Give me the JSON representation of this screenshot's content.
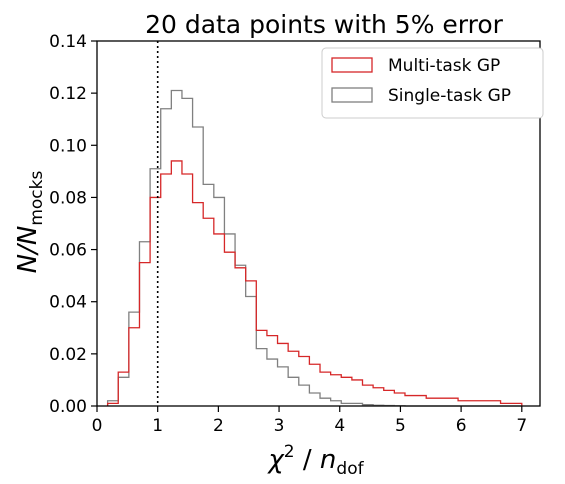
{
  "chart_data": {
    "type": "histogram",
    "title": "20 data points with 5% error",
    "xlabel": {
      "base": "χ",
      "sup": "2",
      "sep": " / ",
      "main": "n",
      "sub": "dof"
    },
    "ylabel": {
      "main": "N/N",
      "sub": "mocks"
    },
    "xlim": [
      0,
      7.3
    ],
    "ylim": [
      0,
      0.14
    ],
    "xticks": [
      0,
      1,
      2,
      3,
      4,
      5,
      6,
      7
    ],
    "xtick_labels": [
      "0",
      "1",
      "2",
      "3",
      "4",
      "5",
      "6",
      "7"
    ],
    "yticks": [
      0,
      0.02,
      0.04,
      0.06,
      0.08,
      0.1,
      0.12,
      0.14
    ],
    "ytick_labels": [
      "0.00",
      "0.02",
      "0.04",
      "0.06",
      "0.08",
      "0.10",
      "0.12",
      "0.14"
    ],
    "vline_x": 1.0,
    "legend_position": "top-right",
    "bin_edges": [
      0.175,
      0.35,
      0.525,
      0.7,
      0.875,
      1.05,
      1.225,
      1.4,
      1.575,
      1.75,
      1.925,
      2.1,
      2.275,
      2.45,
      2.625,
      2.8,
      2.975,
      3.15,
      3.325,
      3.5,
      3.675,
      3.85,
      4.025,
      4.2,
      4.375,
      4.55,
      4.725,
      4.9,
      5.075,
      5.25,
      5.425,
      5.6,
      5.775,
      5.95,
      6.125,
      6.3,
      6.475,
      6.65,
      6.825,
      7.0
    ],
    "series": [
      {
        "name": "Multi-task GP",
        "color": "#d62728",
        "values": [
          0.001,
          0.013,
          0.03,
          0.055,
          0.08,
          0.089,
          0.094,
          0.089,
          0.078,
          0.072,
          0.066,
          0.059,
          0.053,
          0.048,
          0.029,
          0.027,
          0.024,
          0.021,
          0.019,
          0.016,
          0.013,
          0.012,
          0.011,
          0.01,
          0.008,
          0.007,
          0.006,
          0.005,
          0.004,
          0.004,
          0.003,
          0.003,
          0.003,
          0.002,
          0.002,
          0.002,
          0.002,
          0.001,
          0.001
        ]
      },
      {
        "name": "Single-task GP",
        "color": "#808080",
        "values": [
          0.002,
          0.011,
          0.036,
          0.063,
          0.091,
          0.114,
          0.121,
          0.118,
          0.107,
          0.085,
          0.08,
          0.066,
          0.054,
          0.042,
          0.022,
          0.018,
          0.015,
          0.011,
          0.008,
          0.005,
          0.003,
          0.002,
          0.001,
          0.001,
          0.0005,
          0.0003,
          0.0002,
          0.0001,
          0,
          0,
          0,
          0,
          0,
          0,
          0,
          0,
          0,
          0,
          0
        ]
      }
    ]
  }
}
